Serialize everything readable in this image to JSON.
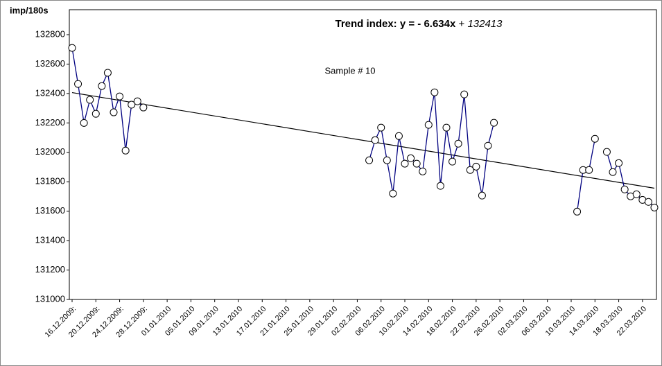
{
  "chart_data": {
    "type": "line",
    "title": "Trend index:  y =",
    "trendline": {
      "slope": -6.634,
      "slope_label": "- 6.634x",
      "operator": "+",
      "intercept": 132413
    },
    "y_label": "imp/180s",
    "annotation": "Sample # 10",
    "xlim": [
      "16.12.2009",
      "24.03.2010"
    ],
    "ylim": [
      131000,
      132800
    ],
    "yticks": [
      131000,
      131200,
      131400,
      131600,
      131800,
      132000,
      132200,
      132400,
      132600,
      132800
    ],
    "xticks": [
      {
        "value": "16.12.2009",
        "label": "16.12.2009:"
      },
      {
        "value": "20.12.2009",
        "label": "20.12.2009:"
      },
      {
        "value": "24.12.2009",
        "label": "24.12.2009:"
      },
      {
        "value": "28.12.2009",
        "label": "28.12.2009:"
      },
      "01.01.2010",
      "05.01.2010",
      "09.01.2010",
      "13.01.2010",
      "17.01.2010",
      "21.01.2010",
      "25.01.2010",
      "29.01.2010",
      "02.02.2010",
      "06.02.2010",
      "10.02.2010",
      "14.02.2010",
      "18.02.2010",
      "22.02.2010",
      "26.02.2010",
      "02.03.2010",
      "06.03.2010",
      "10.03.2010",
      "14.03.2010",
      "18.03.2010",
      "22.03.2010"
    ],
    "series": [
      {
        "color": "#000080",
        "x": [
          "16.12.2009",
          "17.12.2009",
          "18.12.2009",
          "19.12.2009",
          "20.12.2009",
          "21.12.2009",
          "22.12.2009",
          "23.12.2009",
          "24.12.2009",
          "25.12.2009",
          "26.12.2009",
          "27.12.2009",
          "28.12.2009",
          "29.12.2009",
          "04.02.2010",
          "05.02.2010",
          "06.02.2010",
          "07.02.2010",
          "08.02.2010",
          "09.02.2010",
          "10.02.2010",
          "11.02.2010",
          "12.02.2010",
          "13.02.2010",
          "14.02.2010",
          "15.02.2010",
          "16.02.2010",
          "17.02.2010",
          "18.02.2010",
          "19.02.2010",
          "20.02.2010",
          "21.02.2010",
          "22.02.2010",
          "23.02.2010",
          "24.02.2010",
          "25.02.2010",
          "26.02.2010",
          "11.03.2010",
          "12.03.2010",
          "13.03.2010",
          "14.03.2010",
          "15.03.2010",
          "16.03.2010",
          "17.03.2010",
          "18.03.2010",
          "19.03.2010",
          "20.03.2010",
          "21.03.2010",
          "22.03.2010",
          "23.03.2010",
          "24.03.2010"
        ],
        "values": [
          132710,
          132465,
          132200,
          132357,
          132262,
          132451,
          132541,
          132272,
          132380,
          132012,
          132324,
          132347,
          132305,
          null,
          131946,
          132083,
          132168,
          131946,
          131720,
          132111,
          131923,
          131960,
          131923,
          131870,
          132187,
          132408,
          131772,
          132168,
          131937,
          132059,
          132394,
          131880,
          131903,
          131706,
          132045,
          132201,
          null,
          131597,
          131880,
          131880,
          132092,
          null,
          132003,
          131866,
          131927,
          131748,
          131701,
          131715,
          131677,
          131663,
          131625
        ]
      }
    ]
  }
}
